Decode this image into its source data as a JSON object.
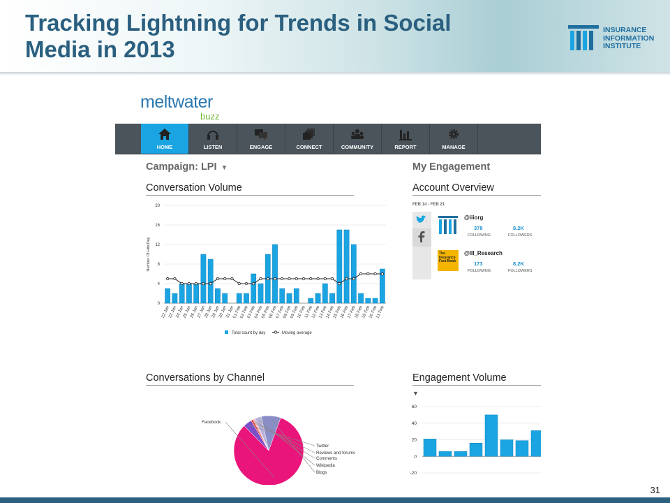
{
  "slide": {
    "title": "Tracking Lightning for Trends in Social\nMedia in 2013",
    "page_number": "31",
    "logo": {
      "line1": "INSURANCE",
      "line2": "INFORMATION",
      "line3": "INSTITUTE"
    },
    "colors": {
      "title": "#2a5f7f",
      "footer": "#2d5f7e",
      "accent": "#1ba4e2",
      "pie_main": "#e9157a"
    }
  },
  "brand": {
    "name": "meltwater",
    "sub": "buzz"
  },
  "nav": {
    "items": [
      {
        "label": "HOME",
        "icon": "home-icon",
        "active": true
      },
      {
        "label": "LISTEN",
        "icon": "headphones-icon",
        "active": false
      },
      {
        "label": "ENGAGE",
        "icon": "chat-icon",
        "active": false
      },
      {
        "label": "CONNECT",
        "icon": "cards-icon",
        "active": false
      },
      {
        "label": "COMMUNITY",
        "icon": "people-icon",
        "active": false
      },
      {
        "label": "REPORT",
        "icon": "bar-chart-icon",
        "active": false
      },
      {
        "label": "MANAGE",
        "icon": "gear-icon",
        "active": false
      }
    ]
  },
  "campaign": {
    "label": "Campaign: LPI",
    "caret": "▼"
  },
  "engagement": {
    "heading": "My Engagement",
    "account_overview": {
      "title": "Account Overview",
      "range": "FEB 14 - FEB 21",
      "accounts": [
        {
          "handle": "@iiiorg",
          "following": "378",
          "followers": "8.2K",
          "following_label": "FOLLOWING",
          "followers_label": "FOLLOWERS"
        },
        {
          "handle": "@III_Research",
          "following": "173",
          "followers": "8.2K",
          "following_label": "FOLLOWING",
          "followers_label": "FOLLOWERS"
        }
      ],
      "book_label": "The Insurance Fact Book"
    }
  },
  "charts": {
    "conversation_volume": {
      "title": "Conversation Volume"
    },
    "conversations_by_channel": {
      "title": "Conversations by Channel"
    },
    "engagement_volume": {
      "title": "Engagement Volume",
      "caret": "▼"
    }
  },
  "chart_data": [
    {
      "type": "bar",
      "title": "Conversation Volume",
      "ylabel": "Number Of Hits/Day",
      "ylim": [
        0,
        20
      ],
      "yticks": [
        0,
        4,
        8,
        12,
        16,
        20
      ],
      "categories": [
        "22 Jan",
        "23 Jan",
        "24 Jan",
        "25 Jan",
        "26 Jan",
        "27 Jan",
        "28 Jan",
        "29 Jan",
        "30 Jan",
        "31 Jan",
        "01 Feb",
        "02 Feb",
        "03 Feb",
        "04 Feb",
        "05 Feb",
        "06 Feb",
        "07 Feb",
        "08 Feb",
        "09 Feb",
        "10 Feb",
        "11 Feb",
        "12 Feb",
        "13 Feb",
        "14 Feb",
        "15 Feb",
        "16 Feb",
        "17 Feb",
        "18 Feb",
        "19 Feb",
        "20 Feb",
        "21 Feb"
      ],
      "series": [
        {
          "name": "Total count by day",
          "type": "bar",
          "values": [
            3,
            2,
            4,
            4,
            4,
            10,
            9,
            3,
            2,
            0,
            2,
            2,
            6,
            4,
            10,
            12,
            3,
            2,
            3,
            0,
            1,
            2,
            4,
            2,
            15,
            15,
            12,
            2,
            1,
            1,
            7
          ]
        },
        {
          "name": "Moving average",
          "type": "line",
          "values": [
            5,
            5,
            4,
            4,
            4,
            4,
            4,
            5,
            5,
            5,
            4,
            4,
            4,
            5,
            5,
            5,
            5,
            5,
            5,
            5,
            5,
            5,
            5,
            5,
            4,
            5,
            5,
            6,
            6,
            6,
            6
          ]
        }
      ],
      "legend": "bottom"
    },
    {
      "type": "pie",
      "title": "Conversations by Channel",
      "categories": [
        "Facebook",
        "Twitter",
        "Reviews and forums",
        "Comments",
        "Wikipedia",
        "Blogs"
      ],
      "values": [
        82,
        4,
        1,
        1,
        3,
        9
      ],
      "colors": [
        "#e9157a",
        "#7b4fc9",
        "#e04a3a",
        "#f1b3cc",
        "#b8b3d9",
        "#8a8ec7"
      ]
    },
    {
      "type": "bar",
      "title": "Engagement Volume",
      "ylim": [
        -20,
        60
      ],
      "yticks": [
        -20,
        0,
        20,
        40,
        60
      ],
      "values": [
        21,
        6,
        6,
        16,
        50,
        20,
        19,
        31
      ]
    }
  ]
}
